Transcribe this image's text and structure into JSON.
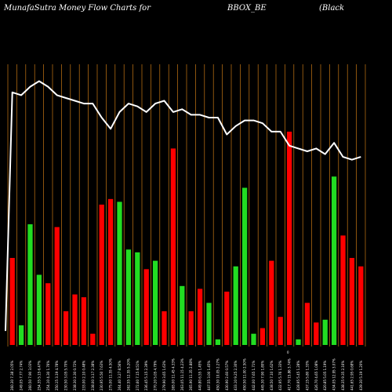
{
  "chart_data": {
    "type": "bar",
    "title_left": "MunafaSutra  Money Flow  Charts for",
    "title_mid": "BBOX_BE",
    "title_right": "(Black",
    "annotation": "0",
    "colors": {
      "background": "#000000",
      "gridline": "#c87814",
      "price_line": "#ffffff",
      "up": "#22dd22",
      "down": "#ff0000"
    },
    "bars": [
      {
        "label": "260.30 7.38 2.05%",
        "value": 0.31,
        "color": "red"
      },
      {
        "label": "249.05 7.77 2.74%",
        "value": 0.07,
        "color": "green"
      },
      {
        "label": "260.50 7.90 3.03%",
        "value": 0.43,
        "color": "green"
      },
      {
        "label": "254.35 5.15 6.47%",
        "value": 0.25,
        "color": "green"
      },
      {
        "label": "254.10 4.30 1.76%",
        "value": 0.22,
        "color": "red"
      },
      {
        "label": "250.15 3.19 4.78%",
        "value": 0.42,
        "color": "red"
      },
      {
        "label": "230.50 3.05 5.70%",
        "value": 0.12,
        "color": "red"
      },
      {
        "label": "238.30 2.30 0.72%",
        "value": 0.18,
        "color": "red"
      },
      {
        "label": "233.00 2.10 0.48%",
        "value": 0.17,
        "color": "red"
      },
      {
        "label": "238.00 3.17 2.38%",
        "value": 0.04,
        "color": "red"
      },
      {
        "label": "230.95 5.50 7.63%",
        "value": 0.5,
        "color": "red"
      },
      {
        "label": "275.00 11.55 4.50%",
        "value": 0.52,
        "color": "red"
      },
      {
        "label": "264.40 3.27 8.56%",
        "value": 0.51,
        "color": "green"
      },
      {
        "label": "262.55 12.55 5.20%",
        "value": 0.34,
        "color": "green"
      },
      {
        "label": "272.60 7.15 8.51%",
        "value": 0.33,
        "color": "green"
      },
      {
        "label": "236.45 5.15 2.39%",
        "value": 0.27,
        "color": "red"
      },
      {
        "label": "270.20 5.05 4.79%",
        "value": 0.3,
        "color": "green"
      },
      {
        "label": "279.90 3.65 1.63%",
        "value": 0.12,
        "color": "red"
      },
      {
        "label": "265.00 11.45 4.33%",
        "value": 0.7,
        "color": "red"
      },
      {
        "label": "263.05 11.15 4.23%",
        "value": 0.21,
        "color": "green"
      },
      {
        "label": "265.90 11.35 2.88%",
        "value": 0.12,
        "color": "red"
      },
      {
        "label": "449.80 6.55 1.45%",
        "value": 0.2,
        "color": "red"
      },
      {
        "label": "447.55 3.00 1.45%",
        "value": 0.15,
        "color": "green"
      },
      {
        "label": "450.30 10.05 2.27%",
        "value": 0.02,
        "color": "green"
      },
      {
        "label": "430.90 2.60 0.57%",
        "value": 0.19,
        "color": "red"
      },
      {
        "label": "433.10 9.25 2.30%",
        "value": 0.28,
        "color": "green"
      },
      {
        "label": "450.50 11.00 2.50%",
        "value": 0.56,
        "color": "green"
      },
      {
        "label": "442.00 7.65 1.71%",
        "value": 0.04,
        "color": "green"
      },
      {
        "label": "445.30 7.90 1.80%",
        "value": 0.06,
        "color": "red"
      },
      {
        "label": "438.50 7.10 1.62%",
        "value": 0.3,
        "color": "red"
      },
      {
        "label": "432.95 5.76 1.33%",
        "value": 0.1,
        "color": "red"
      },
      {
        "label": "417.70 15.86 3.74%",
        "value": 0.76,
        "color": "red"
      },
      {
        "label": "428.95 5.45 1.28%",
        "value": 0.02,
        "color": "green"
      },
      {
        "label": "437.15 5.80 1.33%",
        "value": 0.15,
        "color": "red"
      },
      {
        "label": "426.70 4.65 1.08%",
        "value": 0.08,
        "color": "red"
      },
      {
        "label": "420.85 5.05 1.19%",
        "value": 0.09,
        "color": "green"
      },
      {
        "label": "434.05 12.95 3.07%",
        "value": 0.6,
        "color": "green"
      },
      {
        "label": "438.35 9.35 2.16%",
        "value": 0.39,
        "color": "red"
      },
      {
        "label": "441.65 2.95 0.68%",
        "value": 0.31,
        "color": "red"
      },
      {
        "label": "439.30 5.19 1.20%",
        "value": 0.28,
        "color": "red"
      }
    ],
    "price_line": [
      0.9,
      0.89,
      0.92,
      0.94,
      0.92,
      0.89,
      0.88,
      0.87,
      0.86,
      0.86,
      0.81,
      0.77,
      0.83,
      0.86,
      0.85,
      0.83,
      0.86,
      0.87,
      0.83,
      0.84,
      0.82,
      0.82,
      0.81,
      0.81,
      0.75,
      0.78,
      0.8,
      0.8,
      0.79,
      0.76,
      0.76,
      0.71,
      0.7,
      0.69,
      0.7,
      0.68,
      0.72,
      0.67,
      0.66,
      0.67
    ],
    "price_start": 0.05
  }
}
